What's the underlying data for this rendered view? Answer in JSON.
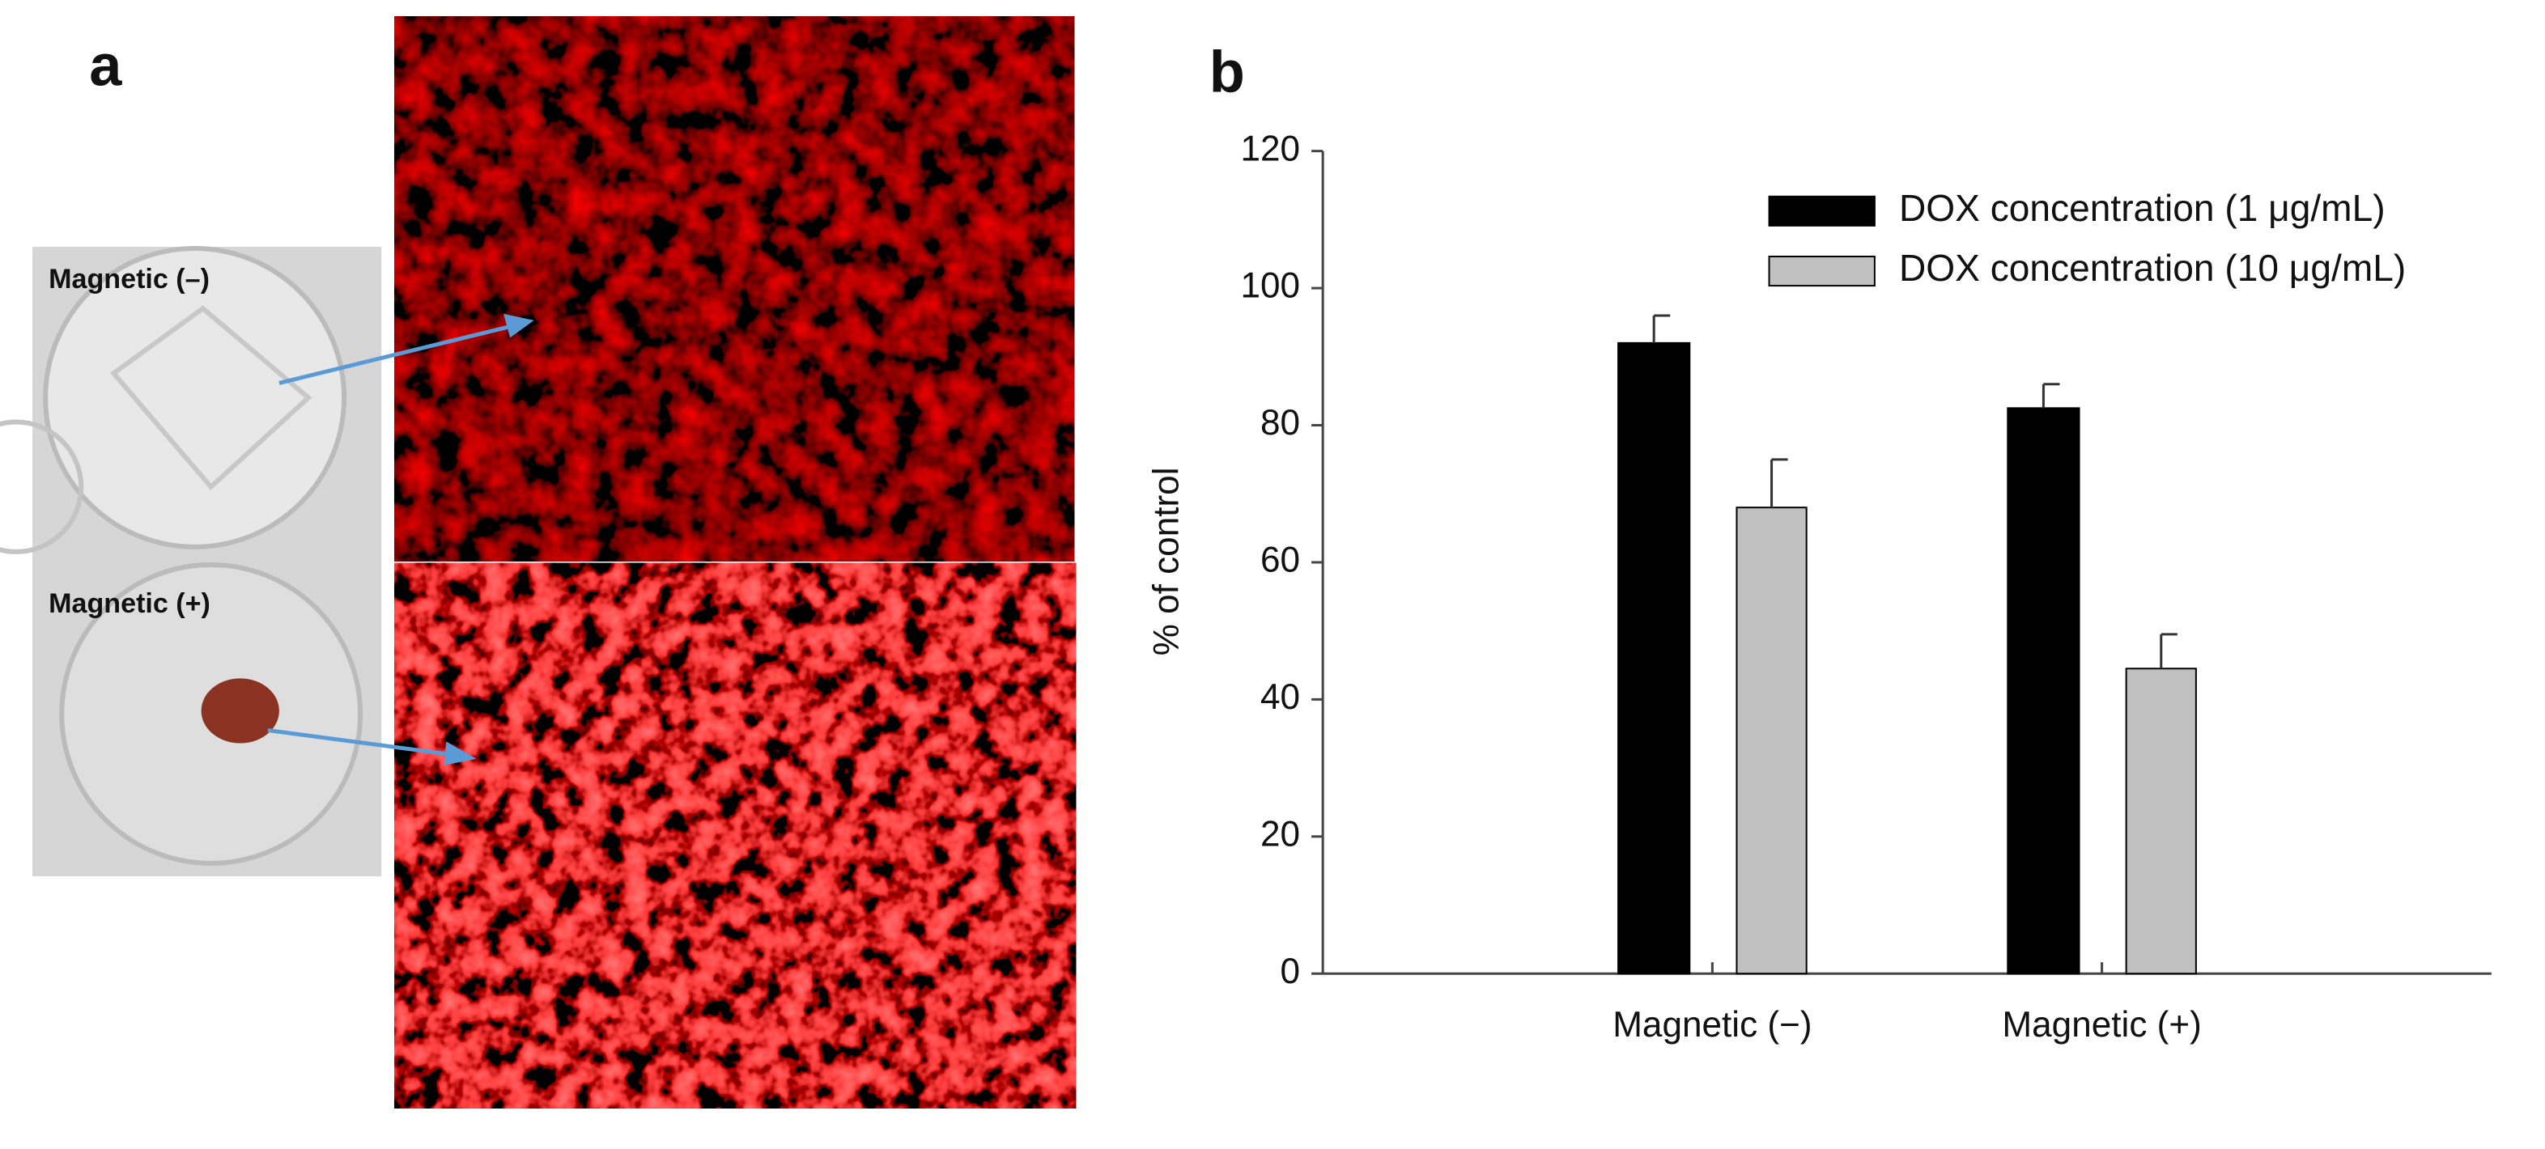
{
  "panel_labels": [
    "a",
    "b"
  ],
  "photo_labels": [
    "Magnetic (–)",
    "Magnetic (+)"
  ],
  "chart_data": {
    "type": "bar",
    "ylabel": "% of control",
    "categories": [
      "Magnetic (−)",
      "Magnetic (+)"
    ],
    "series": [
      {
        "name": "DOX concentration (1 μg/mL)",
        "color": "#000000",
        "edgecolor": "#000000",
        "values": [
          92,
          82.5
        ],
        "errors": [
          4,
          3.5
        ]
      },
      {
        "name": "DOX concentration (10 μg/mL)",
        "color": "#c0c0c0",
        "edgecolor": "#000000",
        "values": [
          68,
          44.5
        ],
        "errors": [
          7,
          5
        ]
      }
    ],
    "ylim": [
      0,
      120
    ],
    "yticks": [
      0,
      20,
      40,
      60,
      80,
      100,
      120
    ],
    "grid": false,
    "legend": "upper right"
  }
}
